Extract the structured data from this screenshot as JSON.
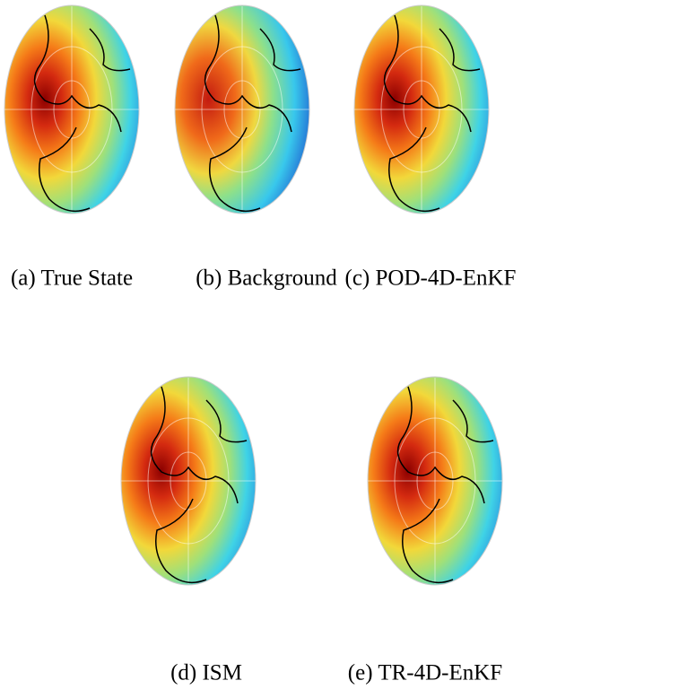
{
  "panels": [
    {
      "caption": "(a) True State"
    },
    {
      "caption": "(b) Background"
    },
    {
      "caption": "(c) POD-4D-EnKF"
    },
    {
      "caption": "(d) ISM"
    },
    {
      "caption": "(e) TR-4D-EnKF"
    }
  ]
}
